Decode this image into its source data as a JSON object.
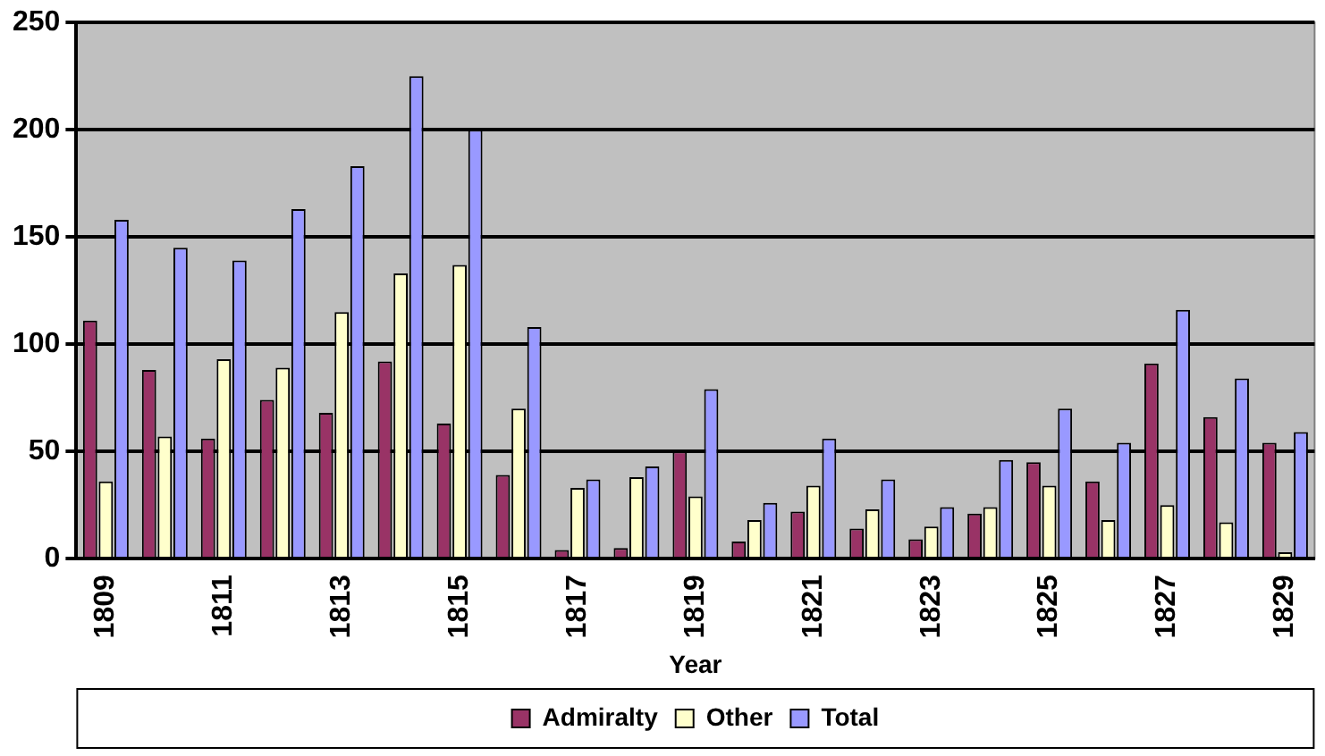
{
  "chart_data": {
    "type": "bar",
    "xlabel": "Year",
    "categories": [
      "1809",
      null,
      "1811",
      null,
      "1813",
      null,
      "1815",
      null,
      "1817",
      null,
      "1819",
      null,
      "1821",
      null,
      "1823",
      null,
      "1825",
      null,
      "1827",
      null,
      "1829"
    ],
    "series": [
      {
        "name": "Admiralty",
        "color": "#993366",
        "values": [
          111,
          88,
          56,
          74,
          68,
          92,
          63,
          39,
          4,
          5,
          50,
          8,
          22,
          14,
          9,
          21,
          45,
          36,
          91,
          66,
          54
        ]
      },
      {
        "name": "Other",
        "color": "#ffffcc",
        "values": [
          36,
          57,
          93,
          89,
          115,
          133,
          137,
          70,
          33,
          38,
          29,
          18,
          34,
          23,
          15,
          24,
          34,
          18,
          25,
          17,
          3
        ]
      },
      {
        "name": "Total",
        "color": "#9999ff",
        "values": [
          158,
          145,
          139,
          163,
          183,
          225,
          200,
          108,
          37,
          43,
          79,
          26,
          56,
          37,
          24,
          46,
          70,
          54,
          116,
          84,
          59
        ]
      }
    ],
    "ylim": [
      0,
      250
    ],
    "yticks": [
      0,
      50,
      100,
      150,
      200,
      250
    ],
    "grid": "y",
    "legend": "bottom"
  }
}
